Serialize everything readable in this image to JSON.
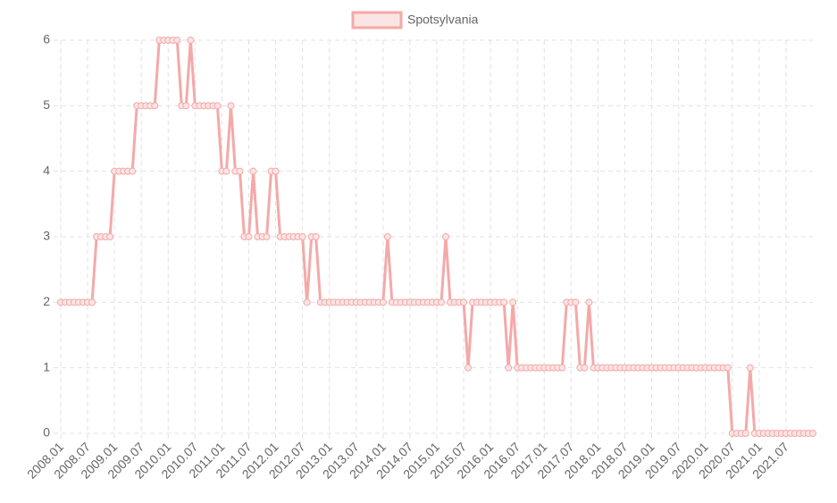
{
  "chart_data": {
    "type": "line",
    "categories": [
      "2008.01",
      null,
      null,
      null,
      null,
      null,
      "2008.07",
      null,
      null,
      null,
      null,
      null,
      "2009.01",
      null,
      null,
      null,
      null,
      null,
      "2009.07",
      null,
      null,
      null,
      null,
      null,
      "2010.01",
      null,
      null,
      null,
      null,
      null,
      "2010.07",
      null,
      null,
      null,
      null,
      null,
      "2011.01",
      null,
      null,
      null,
      null,
      null,
      "2011.07",
      null,
      null,
      null,
      null,
      null,
      "2012.01",
      null,
      null,
      null,
      null,
      null,
      "2012.07",
      null,
      null,
      null,
      null,
      null,
      "2013.01",
      null,
      null,
      null,
      null,
      null,
      "2013.07",
      null,
      null,
      null,
      null,
      null,
      "2014.01",
      null,
      null,
      null,
      null,
      null,
      "2014.07",
      null,
      null,
      null,
      null,
      null,
      "2015.01",
      null,
      null,
      null,
      null,
      null,
      "2015.07",
      null,
      null,
      null,
      null,
      null,
      "2016.01",
      null,
      null,
      null,
      null,
      null,
      "2016.07",
      null,
      null,
      null,
      null,
      null,
      "2017.01",
      null,
      null,
      null,
      null,
      null,
      "2017.07",
      null,
      null,
      null,
      null,
      null,
      "2018.01",
      null,
      null,
      null,
      null,
      null,
      "2018.07",
      null,
      null,
      null,
      null,
      null,
      "2019.01",
      null,
      null,
      null,
      null,
      null,
      "2019.07",
      null,
      null,
      null,
      null,
      null,
      "2020.01",
      null,
      null,
      null,
      null,
      null,
      "2020.07",
      null,
      null,
      null,
      null,
      null,
      "2021.01",
      null,
      null,
      null,
      null,
      null,
      "2021.07",
      null,
      null,
      null,
      null,
      null,
      null
    ],
    "series": [
      {
        "name": "Spotsylvania",
        "color": "#f4a9a8",
        "values": [
          2,
          2,
          2,
          2,
          2,
          2,
          2,
          2,
          3,
          3,
          3,
          3,
          4,
          4,
          4,
          4,
          4,
          5,
          5,
          5,
          5,
          5,
          6,
          6,
          6,
          6,
          6,
          5,
          5,
          6,
          5,
          5,
          5,
          5,
          5,
          5,
          4,
          4,
          5,
          4,
          4,
          3,
          3,
          4,
          3,
          3,
          3,
          4,
          4,
          3,
          3,
          3,
          3,
          3,
          3,
          2,
          3,
          3,
          2,
          2,
          2,
          2,
          2,
          2,
          2,
          2,
          2,
          2,
          2,
          2,
          2,
          2,
          2,
          3,
          2,
          2,
          2,
          2,
          2,
          2,
          2,
          2,
          2,
          2,
          2,
          2,
          3,
          2,
          2,
          2,
          2,
          1,
          2,
          2,
          2,
          2,
          2,
          2,
          2,
          2,
          1,
          2,
          1,
          1,
          1,
          1,
          1,
          1,
          1,
          1,
          1,
          1,
          1,
          2,
          2,
          2,
          1,
          1,
          2,
          1,
          1,
          1,
          1,
          1,
          1,
          1,
          1,
          1,
          1,
          1,
          1,
          1,
          1,
          1,
          1,
          1,
          1,
          1,
          1,
          1,
          1,
          1,
          1,
          1,
          1,
          1,
          1,
          1,
          1,
          1,
          0,
          0,
          0,
          0,
          1,
          0,
          0,
          0,
          0,
          0,
          0,
          0,
          0,
          0,
          0,
          0,
          0,
          0,
          0
        ]
      }
    ],
    "ylim": [
      0,
      6
    ],
    "yticks": [
      0,
      1,
      2,
      3,
      4,
      5,
      6
    ],
    "grid": true,
    "legend": "top"
  }
}
